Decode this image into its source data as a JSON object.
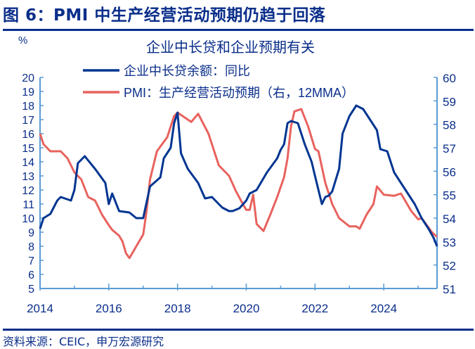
{
  "figure_title": "图 6：PMI 中生产经营活动预期仍趋于回落",
  "source": "资料来源：CEIC，申万宏源研究",
  "chart_data": {
    "type": "line",
    "title": "企业中长贷和企业预期有关",
    "left_unit": "%",
    "ylim_left": [
      5,
      20
    ],
    "ylim_right": [
      51,
      60
    ],
    "yticks_left": [
      "5",
      "6",
      "7",
      "8",
      "9",
      "10",
      "11",
      "12",
      "13",
      "14",
      "15",
      "16",
      "17",
      "18",
      "19",
      "20"
    ],
    "yticks_right": [
      "51",
      "52",
      "53",
      "54",
      "55",
      "56",
      "57",
      "58",
      "59",
      "60"
    ],
    "xlim": [
      2014,
      2025.55
    ],
    "xticks": [
      "2014",
      "2016",
      "2018",
      "2020",
      "2022",
      "2024"
    ],
    "grid": false,
    "legend_position": "top-center",
    "series": [
      {
        "name": "企业中长贷余额：同比",
        "axis": "left",
        "color": "#003591",
        "x": [
          2014.0,
          2014.1,
          2014.3,
          2014.5,
          2014.6,
          2014.9,
          2015.0,
          2015.1,
          2015.3,
          2015.6,
          2015.9,
          2016.0,
          2016.1,
          2016.3,
          2016.6,
          2016.8,
          2017.0,
          2017.2,
          2017.5,
          2017.6,
          2017.8,
          2017.9,
          2018.0,
          2018.1,
          2018.3,
          2018.6,
          2018.8,
          2019.0,
          2019.3,
          2019.5,
          2019.6,
          2019.8,
          2020.0,
          2020.1,
          2020.3,
          2020.6,
          2020.9,
          2021.0,
          2021.1,
          2021.2,
          2021.3,
          2021.5,
          2021.7,
          2021.9,
          2022.0,
          2022.2,
          2022.3,
          2022.4,
          2022.5,
          2022.7,
          2022.8,
          2023.0,
          2023.2,
          2023.4,
          2023.6,
          2023.8,
          2023.9,
          2024.1,
          2024.3,
          2024.5,
          2024.7,
          2024.9,
          2025.1,
          2025.3,
          2025.45,
          2025.55
        ],
        "values": [
          9.25,
          10,
          10.3,
          11.25,
          11.5,
          11.25,
          12,
          13.9,
          14.4,
          13.5,
          12.5,
          11,
          11.75,
          10.5,
          10.4,
          10,
          10,
          12.25,
          12.9,
          14.25,
          15,
          16.75,
          17.5,
          14.6,
          13.5,
          12.5,
          11.4,
          11.5,
          10.75,
          10.5,
          10.5,
          10.7,
          11.25,
          11.75,
          12,
          13.25,
          14.25,
          14.85,
          15.25,
          16.75,
          16.9,
          16.75,
          15.25,
          14,
          13,
          11,
          11.5,
          11.6,
          11.9,
          13.5,
          16,
          17.25,
          18,
          17.75,
          17,
          16.25,
          14.9,
          14.75,
          13.25,
          12.5,
          11.75,
          11,
          10,
          9.25,
          8.6,
          8
        ]
      },
      {
        "name": "PMI：生产经营活动预期（右，12MMA）",
        "axis": "right",
        "color": "#e8625e",
        "x": [
          2014.0,
          2014.1,
          2014.3,
          2014.6,
          2014.8,
          2015.0,
          2015.2,
          2015.4,
          2015.6,
          2015.8,
          2016.0,
          2016.1,
          2016.3,
          2016.4,
          2016.5,
          2016.6,
          2016.8,
          2017.0,
          2017.1,
          2017.2,
          2017.4,
          2017.7,
          2017.9,
          2018.0,
          2018.2,
          2018.4,
          2018.6,
          2018.9,
          2019.0,
          2019.2,
          2019.5,
          2019.7,
          2019.9,
          2020.0,
          2020.1,
          2020.2,
          2020.3,
          2020.5,
          2020.7,
          2020.9,
          2021.1,
          2021.2,
          2021.3,
          2021.4,
          2021.6,
          2021.8,
          2022.0,
          2022.1,
          2022.3,
          2022.5,
          2022.7,
          2023.0,
          2023.2,
          2023.3,
          2023.5,
          2023.7,
          2023.8,
          2024.0,
          2024.3,
          2024.5,
          2024.8,
          2025.0,
          2025.1,
          2025.4,
          2025.55
        ],
        "values": [
          57.6,
          57.15,
          56.85,
          56.85,
          56.55,
          55.95,
          55.65,
          54.9,
          54.75,
          54.15,
          53.7,
          53.5,
          53.25,
          53,
          52.5,
          52.3,
          52.8,
          53.3,
          54.3,
          55.65,
          56.85,
          57.45,
          58.35,
          58.5,
          58.3,
          58.1,
          58.45,
          57.6,
          57.15,
          56.25,
          55.8,
          55.15,
          54.6,
          54.35,
          54.35,
          55,
          53.75,
          53.45,
          54.15,
          54.9,
          55.75,
          56.55,
          57.9,
          58.55,
          58.65,
          57.9,
          56.95,
          56.85,
          55.5,
          54.6,
          54,
          53.65,
          53.65,
          53.55,
          54.15,
          54.6,
          55.35,
          55,
          54.95,
          55.05,
          54.3,
          53.95,
          54,
          53.4,
          53.2
        ]
      }
    ]
  }
}
